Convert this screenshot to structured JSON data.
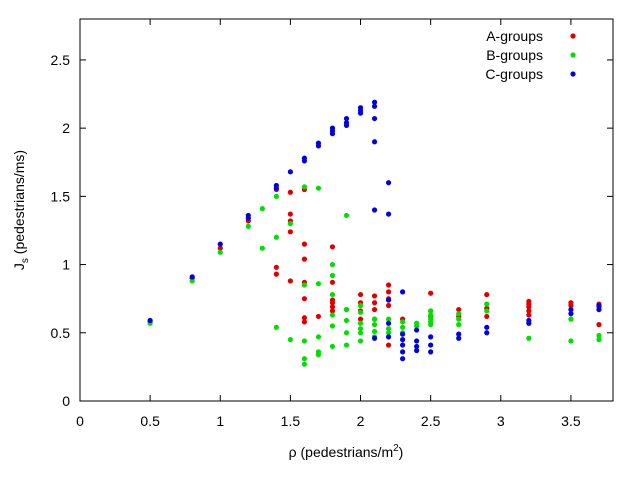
{
  "chart_data": {
    "type": "scatter",
    "title": "",
    "xlabel": "ρ (pedestrians/m²)",
    "xlabel_parts": {
      "main": "ρ (pedestrians/m",
      "sup": "2",
      "close": ")"
    },
    "ylabel": "Js (pedestrians/ms)",
    "ylabel_parts": {
      "main": "J",
      "sub": "s",
      "rest": " (pedestrians/ms)"
    },
    "xlim": [
      0,
      3.8
    ],
    "ylim": [
      0,
      2.8
    ],
    "xticks": [
      0,
      0.5,
      1,
      1.5,
      2,
      2.5,
      3,
      3.5
    ],
    "xtick_labels": [
      "0",
      "0.5",
      "1",
      "1.5",
      "2",
      "2.5",
      "3",
      "3.5"
    ],
    "yticks": [
      0,
      0.5,
      1,
      1.5,
      2,
      2.5
    ],
    "ytick_labels": [
      "0",
      "0.5",
      "1",
      "1.5",
      "2",
      "2.5"
    ],
    "grid": false,
    "legend_position": "top-right",
    "series": [
      {
        "name": "A-groups",
        "color": "#e00000",
        "points": [
          [
            0.5,
            0.58
          ],
          [
            0.8,
            0.9
          ],
          [
            1.0,
            1.12
          ],
          [
            1.2,
            1.32
          ],
          [
            1.4,
            1.55
          ],
          [
            1.4,
            0.98
          ],
          [
            1.4,
            0.93
          ],
          [
            1.5,
            1.53
          ],
          [
            1.5,
            1.37
          ],
          [
            1.5,
            1.32
          ],
          [
            1.5,
            1.24
          ],
          [
            1.5,
            0.88
          ],
          [
            1.6,
            1.55
          ],
          [
            1.6,
            1.15
          ],
          [
            1.6,
            1.04
          ],
          [
            1.6,
            0.87
          ],
          [
            1.6,
            0.75
          ],
          [
            1.6,
            0.61
          ],
          [
            1.6,
            0.58
          ],
          [
            1.7,
            0.62
          ],
          [
            1.8,
            1.13
          ],
          [
            1.8,
            0.87
          ],
          [
            1.8,
            0.74
          ],
          [
            1.8,
            0.72
          ],
          [
            1.8,
            0.69
          ],
          [
            1.8,
            0.66
          ],
          [
            1.9,
            0.67
          ],
          [
            2.0,
            0.78
          ],
          [
            2.0,
            0.72
          ],
          [
            2.0,
            0.66
          ],
          [
            2.0,
            0.6
          ],
          [
            2.1,
            0.77
          ],
          [
            2.1,
            0.72
          ],
          [
            2.1,
            0.67
          ],
          [
            2.1,
            0.6
          ],
          [
            2.2,
            0.85
          ],
          [
            2.2,
            0.8
          ],
          [
            2.2,
            0.75
          ],
          [
            2.2,
            0.7
          ],
          [
            2.2,
            0.41
          ],
          [
            2.3,
            0.6
          ],
          [
            2.5,
            0.79
          ],
          [
            2.5,
            0.66
          ],
          [
            2.5,
            0.62
          ],
          [
            2.7,
            0.67
          ],
          [
            2.7,
            0.62
          ],
          [
            2.9,
            0.78
          ],
          [
            2.9,
            0.68
          ],
          [
            2.9,
            0.62
          ],
          [
            3.2,
            0.73
          ],
          [
            3.2,
            0.71
          ],
          [
            3.2,
            0.69
          ],
          [
            3.2,
            0.66
          ],
          [
            3.2,
            0.63
          ],
          [
            3.5,
            0.72
          ],
          [
            3.5,
            0.7
          ],
          [
            3.7,
            0.71
          ],
          [
            3.7,
            0.69
          ],
          [
            3.7,
            0.56
          ]
        ]
      },
      {
        "name": "B-groups",
        "color": "#00e000",
        "points": [
          [
            0.5,
            0.57
          ],
          [
            0.8,
            0.88
          ],
          [
            1.0,
            1.09
          ],
          [
            1.2,
            1.28
          ],
          [
            1.3,
            1.41
          ],
          [
            1.3,
            1.12
          ],
          [
            1.4,
            1.5
          ],
          [
            1.4,
            1.2
          ],
          [
            1.4,
            0.54
          ],
          [
            1.5,
            1.3
          ],
          [
            1.5,
            0.45
          ],
          [
            1.6,
            1.57
          ],
          [
            1.6,
            0.85
          ],
          [
            1.6,
            0.44
          ],
          [
            1.6,
            0.31
          ],
          [
            1.6,
            0.27
          ],
          [
            1.7,
            1.56
          ],
          [
            1.7,
            0.86
          ],
          [
            1.7,
            0.47
          ],
          [
            1.7,
            0.36
          ],
          [
            1.7,
            0.34
          ],
          [
            1.8,
            1.0
          ],
          [
            1.8,
            0.92
          ],
          [
            1.8,
            0.78
          ],
          [
            1.8,
            0.63
          ],
          [
            1.8,
            0.55
          ],
          [
            1.8,
            0.4
          ],
          [
            1.9,
            1.36
          ],
          [
            1.9,
            0.67
          ],
          [
            1.9,
            0.59
          ],
          [
            1.9,
            0.5
          ],
          [
            1.9,
            0.41
          ],
          [
            2.0,
            0.7
          ],
          [
            2.0,
            0.65
          ],
          [
            2.0,
            0.57
          ],
          [
            2.0,
            0.53
          ],
          [
            2.0,
            0.5
          ],
          [
            2.0,
            0.44
          ],
          [
            2.1,
            0.6
          ],
          [
            2.1,
            0.56
          ],
          [
            2.1,
            0.51
          ],
          [
            2.1,
            0.47
          ],
          [
            2.2,
            0.6
          ],
          [
            2.2,
            0.53
          ],
          [
            2.2,
            0.5
          ],
          [
            2.3,
            0.58
          ],
          [
            2.3,
            0.54
          ],
          [
            2.3,
            0.5
          ],
          [
            2.4,
            0.57
          ],
          [
            2.4,
            0.55
          ],
          [
            2.5,
            0.66
          ],
          [
            2.5,
            0.63
          ],
          [
            2.5,
            0.6
          ],
          [
            2.5,
            0.58
          ],
          [
            2.5,
            0.56
          ],
          [
            2.7,
            0.64
          ],
          [
            2.7,
            0.6
          ],
          [
            2.7,
            0.56
          ],
          [
            2.9,
            0.71
          ],
          [
            2.9,
            0.66
          ],
          [
            3.2,
            0.46
          ],
          [
            3.5,
            0.6
          ],
          [
            3.5,
            0.44
          ],
          [
            3.7,
            0.48
          ],
          [
            3.7,
            0.45
          ]
        ]
      },
      {
        "name": "C-groups",
        "color": "#0000e0",
        "points": [
          [
            0.5,
            0.59
          ],
          [
            0.8,
            0.91
          ],
          [
            1.0,
            1.15
          ],
          [
            1.2,
            1.36
          ],
          [
            1.2,
            1.34
          ],
          [
            1.4,
            1.58
          ],
          [
            1.4,
            1.56
          ],
          [
            1.5,
            1.68
          ],
          [
            1.6,
            1.78
          ],
          [
            1.6,
            1.76
          ],
          [
            1.7,
            1.89
          ],
          [
            1.7,
            1.87
          ],
          [
            1.8,
            1.96
          ],
          [
            1.8,
            1.98
          ],
          [
            1.8,
            2.0
          ],
          [
            1.9,
            2.07
          ],
          [
            1.9,
            2.04
          ],
          [
            1.9,
            2.02
          ],
          [
            2.0,
            2.15
          ],
          [
            2.0,
            2.13
          ],
          [
            2.0,
            2.11
          ],
          [
            2.1,
            2.19
          ],
          [
            2.1,
            2.16
          ],
          [
            2.1,
            2.07
          ],
          [
            2.1,
            1.9
          ],
          [
            2.1,
            1.4
          ],
          [
            2.1,
            0.46
          ],
          [
            2.2,
            1.6
          ],
          [
            2.2,
            1.37
          ],
          [
            2.2,
            0.74
          ],
          [
            2.2,
            0.57
          ],
          [
            2.2,
            0.47
          ],
          [
            2.3,
            0.8
          ],
          [
            2.3,
            0.49
          ],
          [
            2.3,
            0.45
          ],
          [
            2.3,
            0.41
          ],
          [
            2.3,
            0.36
          ],
          [
            2.3,
            0.31
          ],
          [
            2.4,
            0.52
          ],
          [
            2.4,
            0.44
          ],
          [
            2.4,
            0.4
          ],
          [
            2.4,
            0.37
          ],
          [
            2.5,
            0.47
          ],
          [
            2.5,
            0.41
          ],
          [
            2.5,
            0.36
          ],
          [
            2.7,
            0.49
          ],
          [
            2.7,
            0.46
          ],
          [
            2.9,
            0.54
          ],
          [
            2.9,
            0.5
          ],
          [
            3.2,
            0.59
          ],
          [
            3.2,
            0.57
          ],
          [
            3.5,
            0.67
          ],
          [
            3.5,
            0.64
          ],
          [
            3.7,
            0.7
          ],
          [
            3.7,
            0.67
          ]
        ]
      }
    ]
  }
}
